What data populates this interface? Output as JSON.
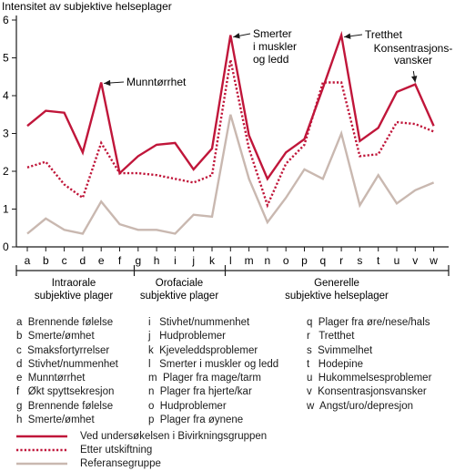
{
  "chart_data": {
    "type": "line",
    "title": "Intensitet av subjektive helseplager",
    "ylim": [
      0,
      6
    ],
    "yticks": [
      0,
      1,
      2,
      3,
      4,
      5,
      6
    ],
    "categories": [
      "a",
      "b",
      "c",
      "d",
      "e",
      "f",
      "g",
      "h",
      "i",
      "j",
      "k",
      "l",
      "m",
      "n",
      "o",
      "p",
      "q",
      "r",
      "s",
      "t",
      "u",
      "v",
      "w"
    ],
    "series": [
      {
        "name": "Ved undersøkelsen i Bivirkningsgruppen",
        "color": "#c0163a",
        "style": "solid",
        "values": [
          3.2,
          3.6,
          3.55,
          2.5,
          4.35,
          1.95,
          2.4,
          2.7,
          2.75,
          2.05,
          2.6,
          5.6,
          2.95,
          1.8,
          2.5,
          2.85,
          4.2,
          5.6,
          2.8,
          3.15,
          4.1,
          4.3,
          3.2
        ]
      },
      {
        "name": "Etter utskiftning",
        "color": "#c0163a",
        "style": "dotted",
        "values": [
          2.1,
          2.25,
          1.65,
          1.3,
          2.75,
          1.95,
          1.95,
          1.9,
          1.8,
          1.7,
          1.9,
          4.95,
          2.6,
          1.1,
          2.2,
          2.7,
          4.35,
          4.35,
          2.4,
          2.45,
          3.3,
          3.25,
          3.05
        ]
      },
      {
        "name": "Referansegruppe",
        "color": "#c9b8b0",
        "style": "solid",
        "values": [
          0.35,
          0.75,
          0.45,
          0.35,
          1.2,
          0.6,
          0.45,
          0.45,
          0.35,
          0.85,
          0.8,
          3.5,
          1.8,
          0.65,
          1.3,
          2.05,
          1.8,
          3.0,
          1.1,
          1.9,
          1.15,
          1.5,
          1.7
        ]
      }
    ],
    "annotations": [
      "Munntørrhet",
      "Smerter\ni muskler\nog ledd",
      "Tretthet",
      "Konsentrasjons-\nvansker"
    ],
    "groups": [
      "Intraorale\nsubjektive plager",
      "Orofaciale\nsubjektive plager",
      "Generelle\nsubjektive helseplager"
    ],
    "grid": false,
    "legend_position": "bottom-left"
  },
  "category_legend": {
    "col1": [
      "a  Brennende følelse",
      "b  Smerte/ømhet",
      "c  Smaksfortyrrelser",
      "d  Stivhet/nummenhet",
      "e  Munntørrhet",
      "f   Økt spyttsekresjon",
      "g  Brennende følelse",
      "h  Smerte/ømhet"
    ],
    "col2": [
      "i   Stivhet/nummenhet",
      "j   Hudproblemer",
      "k  Kjeveleddsproblemer",
      "l   Smerter i muskler og ledd",
      "m  Plager fra mage/tarm",
      "n  Plager fra hjerte/kar",
      "o  Hudproblemer",
      "p  Plager fra øynene"
    ],
    "col3": [
      "q  Plager fra øre/nese/hals",
      "r   Tretthet",
      "s  Svimmelhet",
      "t   Hodepine",
      "u  Hukommelsesproblemer",
      "v  Konsentrasjonsvansker",
      "w  Angst/uro/depresjon"
    ]
  },
  "series_legend": [
    {
      "label": "Ved undersøkelsen i Bivirkningsgruppen",
      "color": "#c0163a",
      "style": "solid"
    },
    {
      "label": "Etter utskiftning",
      "color": "#c0163a",
      "style": "dotted"
    },
    {
      "label": "Referansegruppe",
      "color": "#c9b8b0",
      "style": "solid"
    }
  ]
}
